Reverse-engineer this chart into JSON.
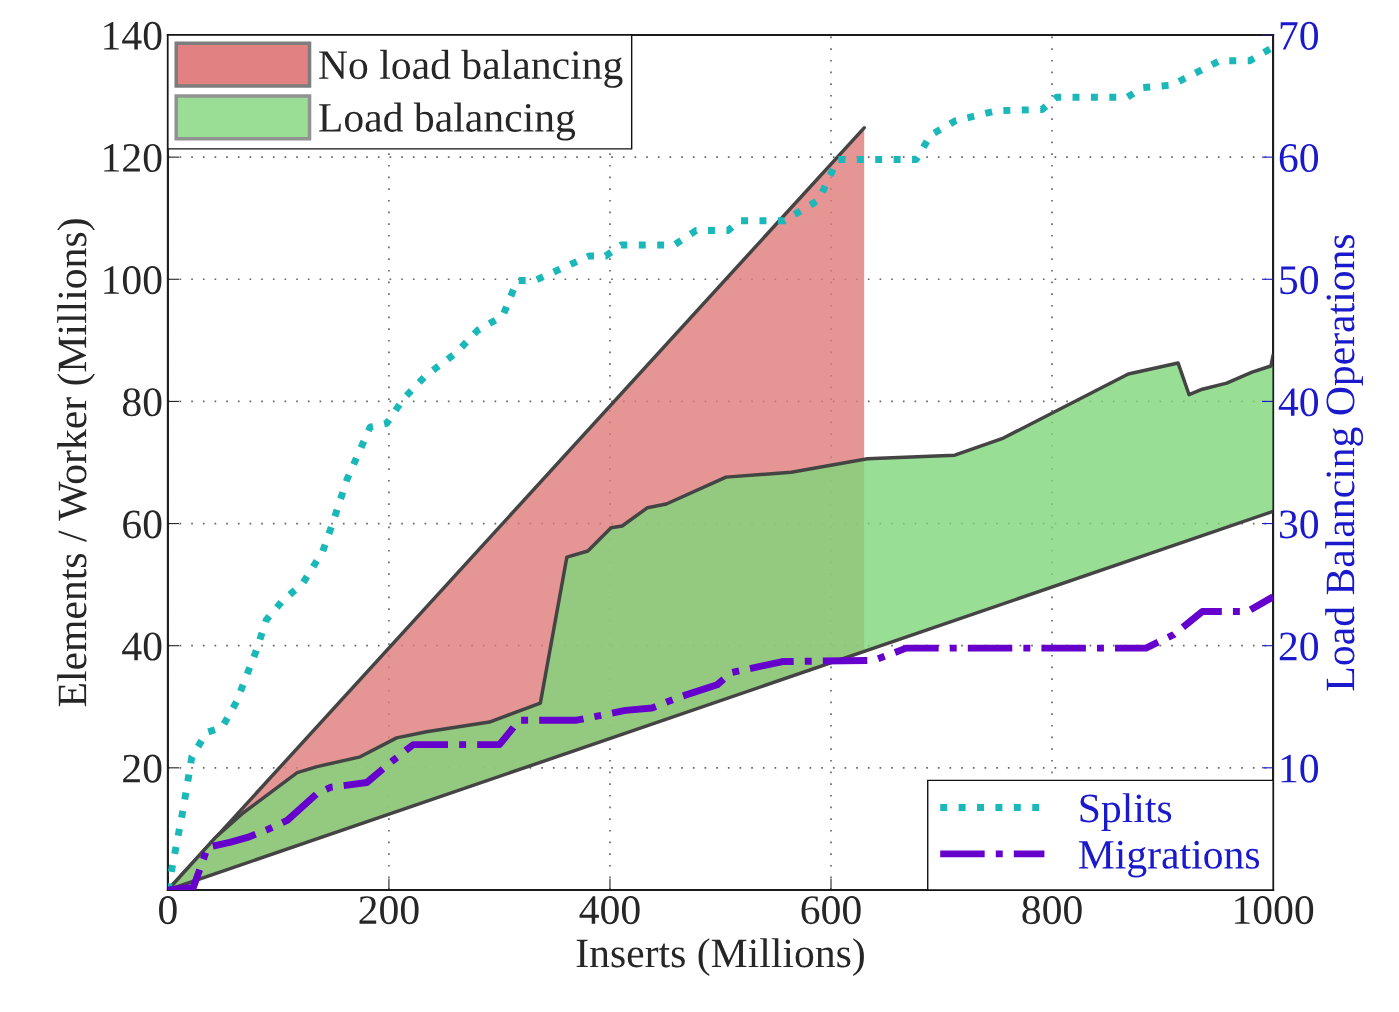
{
  "chart_data": {
    "type": "area",
    "xlabel": "Inserts (Millions)",
    "ylabel": "Elements / Worker (Millions)",
    "y2label": "Load Balancing Operations",
    "xlim": [
      0,
      1000
    ],
    "xticks": [
      0,
      200,
      400,
      600,
      800,
      1000
    ],
    "ylim": [
      0,
      140
    ],
    "yticks": [
      20,
      40,
      60,
      80,
      100,
      120,
      140
    ],
    "y2lim": [
      0,
      70
    ],
    "y2ticks": [
      10,
      20,
      30,
      40,
      50,
      60,
      70
    ],
    "grid": true,
    "legend": "top left",
    "series": [
      {
        "name": "No load balancing",
        "color": "#e07b7b",
        "x": [
          0,
          630
        ],
        "values": [
          0,
          124.8
        ]
      },
      {
        "name": "Load balancing",
        "color": "#80d67a",
        "x": [
          0,
          42.5,
          68,
          117,
          135,
          174,
          207,
          234,
          291,
          337,
          361,
          380,
          401,
          411,
          434,
          451,
          505,
          564,
          633,
          712,
          756,
          869,
          914,
          924,
          936,
          958,
          981,
          998,
          1000
        ],
        "values": [
          0,
          8.5,
          12.6,
          19.2,
          20.2,
          21.8,
          24.9,
          25.9,
          27.5,
          30.6,
          54.5,
          55.5,
          59.3,
          59.6,
          62.6,
          63.2,
          67.6,
          68.4,
          70.6,
          71.2,
          74.0,
          84.5,
          86.3,
          81.1,
          82.0,
          83.0,
          84.8,
          85.8,
          87.6
        ]
      },
      {
        "type": "line",
        "color": "#444444",
        "x": [
          0,
          1000
        ],
        "values": [
          0,
          62
        ]
      },
      {
        "name": "Splits",
        "type": "line",
        "axis": "y2",
        "color": "#1ab8b8",
        "line_style": "dotted",
        "x": [
          0,
          13.6,
          21.7,
          35,
          49,
          62,
          80,
          89,
          104,
          122,
          140,
          149,
          162,
          183,
          198,
          213,
          232,
          261,
          280,
          303,
          316,
          332,
          381,
          396,
          410,
          458,
          478,
          507,
          517,
          558,
          589,
          606,
          677,
          690,
          713,
          750,
          791,
          804,
          868,
          882,
          909,
          919,
          952,
          979,
          1000
        ],
        "values": [
          0,
          6.5,
          10.9,
          12.9,
          13.3,
          15.4,
          19.6,
          22.1,
          23.7,
          25.1,
          27.7,
          30.0,
          33.6,
          37.9,
          38.2,
          40.2,
          42.0,
          44.0,
          45.8,
          47.0,
          49.9,
          49.9,
          51.9,
          51.9,
          52.8,
          52.8,
          54.0,
          54.0,
          54.8,
          54.8,
          56.5,
          59.8,
          59.8,
          61.8,
          63.0,
          63.8,
          63.9,
          64.9,
          64.9,
          65.7,
          65.9,
          66.4,
          67.9,
          67.9,
          69.0
        ]
      },
      {
        "name": "Migrations",
        "type": "line",
        "axis": "y2",
        "color": "#6600cc",
        "line_style": "dashdot",
        "x": [
          0,
          23,
          36,
          56,
          72,
          89,
          108,
          135,
          147,
          180,
          201,
          222,
          300,
          318,
          370,
          414,
          438,
          463,
          497,
          510,
          556,
          639,
          668,
          885,
          910,
          936,
          977,
          1000
        ],
        "values": [
          0,
          0.2,
          3.5,
          3.9,
          4.3,
          4.9,
          5.7,
          7.9,
          8.4,
          8.8,
          10.4,
          11.9,
          11.9,
          13.9,
          13.9,
          14.7,
          14.9,
          15.8,
          16.8,
          17.8,
          18.7,
          18.8,
          19.8,
          19.8,
          20.9,
          22.8,
          22.8,
          24.0
        ]
      }
    ]
  }
}
